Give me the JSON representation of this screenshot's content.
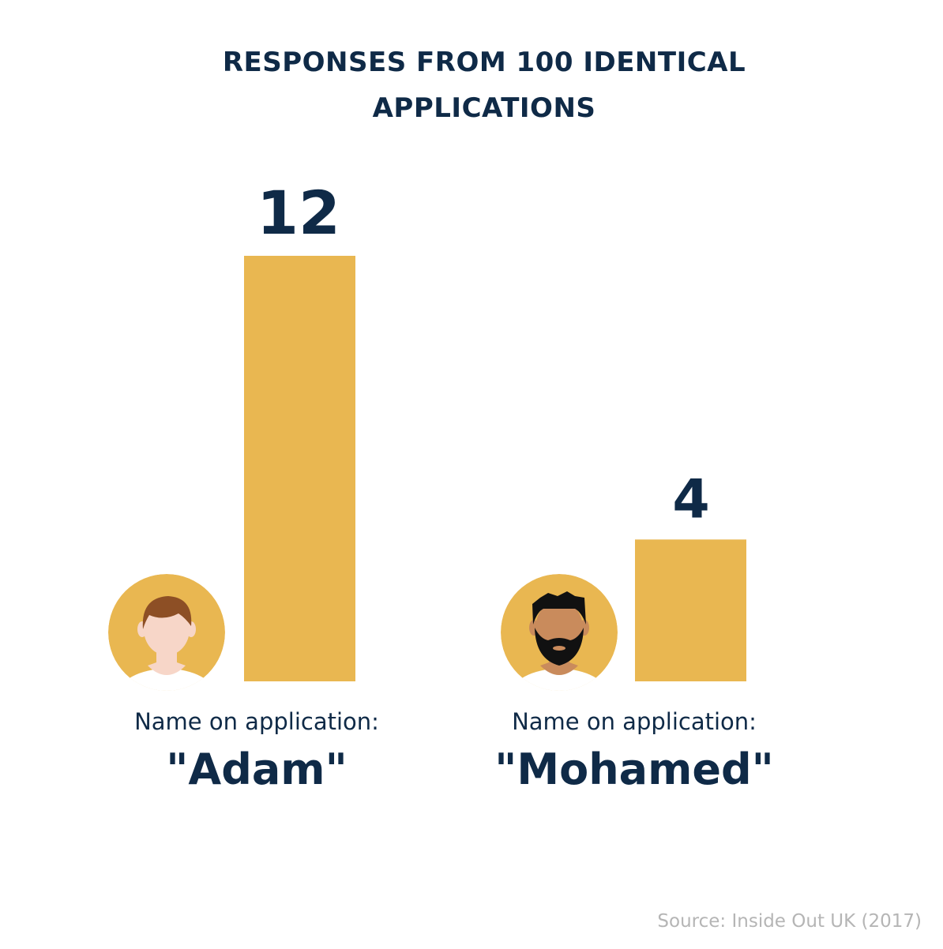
{
  "colors": {
    "bar": "#e9b751",
    "text": "#0f2a47",
    "source": "#b5b5b5",
    "avatar_bg": "#e9b751",
    "skin_light": "#f7d6c8",
    "hair_brown": "#8d4f25",
    "skin_dark": "#c98b5c",
    "hair_black": "#111111",
    "shirt": "#ffffff"
  },
  "chart_data": {
    "type": "bar",
    "title": [
      "RESPONSES FROM 100 IDENTICAL",
      "APPLICATIONS"
    ],
    "category_prefix": "Name on application:",
    "categories": [
      "\"Adam\"",
      "\"Mohamed\""
    ],
    "values": [
      12,
      4
    ],
    "avatars": [
      "light-skinned-person-icon",
      "bearded-person-icon"
    ],
    "ylim": [
      0,
      12
    ],
    "grid": false,
    "legend": "none"
  },
  "source": "Source: Inside Out UK (2017)"
}
